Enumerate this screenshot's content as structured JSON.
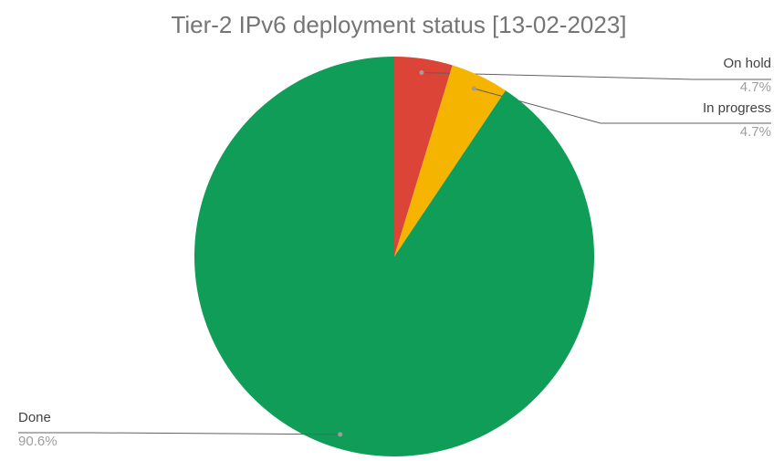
{
  "chart_data": {
    "type": "pie",
    "title": "Tier-2 IPv6 deployment status [13-02-2023]",
    "categories": [
      "On hold",
      "In progress",
      "Done"
    ],
    "values": [
      4.7,
      4.7,
      90.6
    ],
    "value_labels": [
      "4.7%",
      "4.7%",
      "90.6%"
    ],
    "colors": [
      "#db4437",
      "#f4b400",
      "#0f9d58"
    ]
  }
}
